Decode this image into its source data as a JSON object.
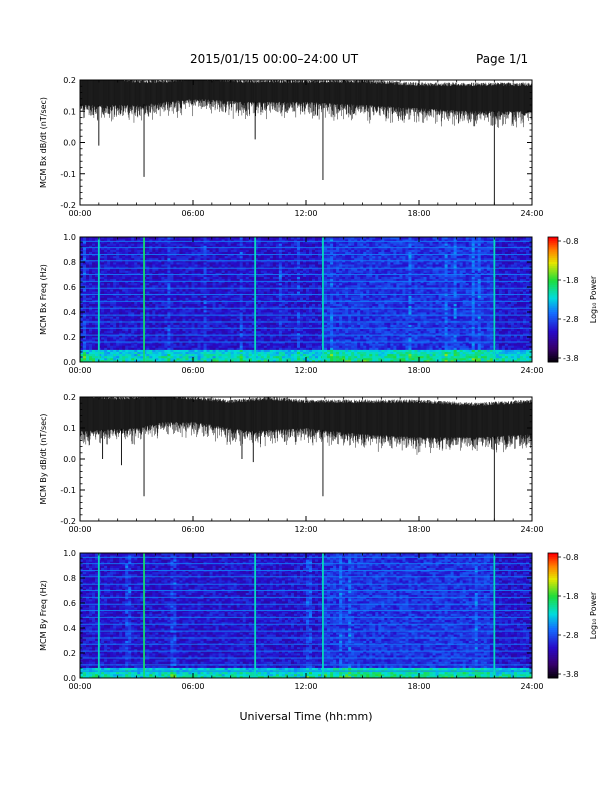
{
  "header": {
    "title": "2015/01/15  00:00–24:00 UT",
    "page": "Page 1/1"
  },
  "footer": {
    "xlabel": "Universal Time (hh:mm)"
  },
  "chart_data": [
    {
      "type": "line",
      "name": "bx-timeseries",
      "ylabel": "MCM Bx dB/dt (nT/sec)",
      "xlim": [
        0,
        24
      ],
      "x_ticklabels": [
        "00:00",
        "06:00",
        "12:00",
        "18:00",
        "24:00"
      ],
      "ylim": [
        -0.2,
        0.2
      ],
      "y_ticklabels": [
        "-0.2",
        "-0.1",
        "0.0",
        "0.1",
        "0.2"
      ],
      "baseline": [
        {
          "x": 0,
          "y": 0.17
        },
        {
          "x": 2,
          "y": 0.17
        },
        {
          "x": 3,
          "y": 0.16
        },
        {
          "x": 4.5,
          "y": 0.16
        },
        {
          "x": 6,
          "y": 0.17
        },
        {
          "x": 9,
          "y": 0.16
        },
        {
          "x": 12,
          "y": 0.16
        },
        {
          "x": 15,
          "y": 0.16
        },
        {
          "x": 18,
          "y": 0.15
        },
        {
          "x": 21,
          "y": 0.15
        },
        {
          "x": 24,
          "y": 0.15
        }
      ],
      "band_low": [
        {
          "x": 0,
          "y": 0.12
        },
        {
          "x": 3,
          "y": 0.12
        },
        {
          "x": 4.5,
          "y": 0.13
        },
        {
          "x": 6,
          "y": 0.14
        },
        {
          "x": 9,
          "y": 0.13
        },
        {
          "x": 12,
          "y": 0.13
        },
        {
          "x": 15,
          "y": 0.12
        },
        {
          "x": 18,
          "y": 0.11
        },
        {
          "x": 21,
          "y": 0.1
        },
        {
          "x": 24,
          "y": 0.1
        }
      ],
      "spikes": [
        {
          "x": 1.0,
          "y": -0.01
        },
        {
          "x": 3.4,
          "y": -0.11
        },
        {
          "x": 9.3,
          "y": 0.01
        },
        {
          "x": 12.9,
          "y": -0.12
        },
        {
          "x": 22.0,
          "y": -0.2
        }
      ]
    },
    {
      "type": "heatmap",
      "name": "bx-spectrogram",
      "ylabel": "MCM Bx Freq (Hz)",
      "xlim": [
        0,
        24
      ],
      "x_ticklabels": [
        "00:00",
        "06:00",
        "12:00",
        "18:00",
        "24:00"
      ],
      "ylim": [
        0,
        1.0
      ],
      "y_ticklabels": [
        "0.0",
        "0.2",
        "0.4",
        "0.6",
        "0.8",
        "1.0"
      ],
      "colorbar": {
        "label": "Log₁₀ Power",
        "range": [
          -3.8,
          -0.8
        ],
        "ticklabels": [
          "-0.8",
          "-1.8",
          "-2.8",
          "-3.8"
        ]
      },
      "harmonic_lines_hz": [
        0.16,
        0.215,
        0.27,
        0.32,
        0.375,
        0.43,
        0.485,
        0.54,
        0.59,
        0.645,
        0.7,
        0.75,
        0.81,
        0.86,
        0.915,
        0.965
      ],
      "bright_vertical_lines_hours": [
        1.0,
        3.4,
        9.3,
        12.9,
        22.0
      ],
      "low_freq_enhancement_top_hz": 0.1
    },
    {
      "type": "line",
      "name": "by-timeseries",
      "ylabel": "MCM By dB/dt (nT/sec)",
      "xlim": [
        0,
        24
      ],
      "x_ticklabels": [
        "00:00",
        "06:00",
        "12:00",
        "18:00",
        "24:00"
      ],
      "ylim": [
        -0.2,
        0.2
      ],
      "y_ticklabels": [
        "-0.2",
        "-0.1",
        "0.0",
        "0.1",
        "0.2"
      ],
      "baseline": [
        {
          "x": 0,
          "y": 0.17
        },
        {
          "x": 2,
          "y": 0.16
        },
        {
          "x": 4.5,
          "y": 0.17
        },
        {
          "x": 6,
          "y": 0.16
        },
        {
          "x": 8,
          "y": 0.15
        },
        {
          "x": 10,
          "y": 0.16
        },
        {
          "x": 12,
          "y": 0.15
        },
        {
          "x": 14,
          "y": 0.15
        },
        {
          "x": 18,
          "y": 0.15
        },
        {
          "x": 21,
          "y": 0.14
        },
        {
          "x": 24,
          "y": 0.15
        }
      ],
      "band_low": [
        {
          "x": 0,
          "y": 0.09
        },
        {
          "x": 3,
          "y": 0.1
        },
        {
          "x": 4.5,
          "y": 0.12
        },
        {
          "x": 6,
          "y": 0.12
        },
        {
          "x": 9,
          "y": 0.09
        },
        {
          "x": 12,
          "y": 0.1
        },
        {
          "x": 15,
          "y": 0.08
        },
        {
          "x": 18,
          "y": 0.07
        },
        {
          "x": 21,
          "y": 0.07
        },
        {
          "x": 24,
          "y": 0.08
        }
      ],
      "spikes": [
        {
          "x": 1.2,
          "y": 0.0
        },
        {
          "x": 2.2,
          "y": -0.02
        },
        {
          "x": 3.4,
          "y": -0.12
        },
        {
          "x": 8.6,
          "y": 0.0
        },
        {
          "x": 9.2,
          "y": -0.01
        },
        {
          "x": 12.9,
          "y": -0.12
        },
        {
          "x": 22.0,
          "y": -0.2
        }
      ]
    },
    {
      "type": "heatmap",
      "name": "by-spectrogram",
      "ylabel": "MCM By Freq (Hz)",
      "xlim": [
        0,
        24
      ],
      "x_ticklabels": [
        "00:00",
        "06:00",
        "12:00",
        "18:00",
        "24:00"
      ],
      "ylim": [
        0,
        1.0
      ],
      "y_ticklabels": [
        "0.0",
        "0.2",
        "0.4",
        "0.6",
        "0.8",
        "1.0"
      ],
      "colorbar": {
        "label": "Log₁₀ Power",
        "range": [
          -3.8,
          -0.8
        ],
        "ticklabels": [
          "-0.8",
          "-1.8",
          "-2.8",
          "-3.8"
        ]
      },
      "harmonic_lines_hz": [
        0.055,
        0.105,
        0.16,
        0.215,
        0.27,
        0.32,
        0.375,
        0.43,
        0.485,
        0.54,
        0.59,
        0.645,
        0.7,
        0.75,
        0.81,
        0.86,
        0.915,
        0.965
      ],
      "bright_vertical_lines_hours": [
        1.0,
        3.4,
        9.3,
        12.9,
        22.0
      ],
      "low_freq_enhancement_top_hz": 0.08
    }
  ]
}
